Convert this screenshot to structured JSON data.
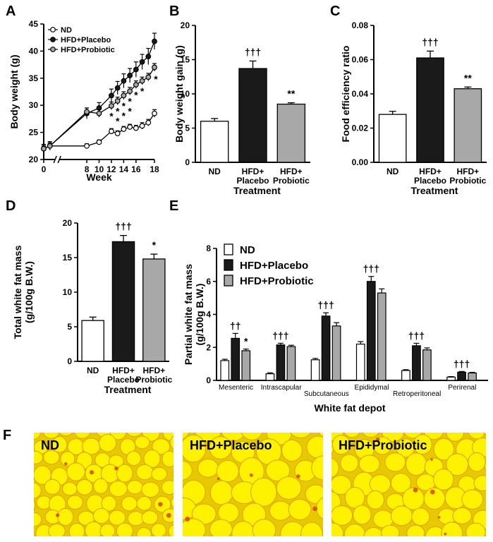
{
  "panel_letters": [
    "A",
    "B",
    "C",
    "D",
    "E",
    "F"
  ],
  "colors": {
    "ND": "#ffffff",
    "HFD+Placebo": "#1a1a1a",
    "HFD+Probiotic": "#a8a8a8",
    "histology_bg": "#f2e200",
    "histology_stroke": "#d23a1a"
  },
  "chart_data": [
    {
      "id": "A",
      "type": "line",
      "xlabel": "Week",
      "ylabel": "Body weight (g)",
      "xlim": [
        0,
        18
      ],
      "ylim": [
        20,
        45
      ],
      "xticks": [
        0,
        8,
        10,
        12,
        14,
        16,
        18
      ],
      "yticks": [
        20,
        25,
        30,
        35,
        40,
        45
      ],
      "x": [
        0,
        1,
        7,
        9,
        11,
        12,
        13,
        14,
        15,
        16,
        17,
        18
      ],
      "legend": "top-left",
      "series": [
        {
          "name": "ND",
          "marker": "open-circle",
          "values": [
            22,
            22.5,
            22.5,
            23.2,
            25.2,
            24.8,
            25.6,
            26,
            25.8,
            26.2,
            26.8,
            28.5
          ],
          "errors": [
            0.4,
            0.4,
            0.4,
            0.4,
            0.5,
            0.5,
            0.5,
            0.5,
            0.5,
            0.6,
            0.6,
            0.7
          ]
        },
        {
          "name": "HFD+Placebo",
          "marker": "filled-circle",
          "values": [
            22,
            22.5,
            28.5,
            29.5,
            31.8,
            33.2,
            34.5,
            35.5,
            36.6,
            38,
            39,
            41.8
          ],
          "errors": [
            0.8,
            0.8,
            1,
            1,
            1.2,
            1.2,
            1.3,
            1.3,
            1.4,
            1.4,
            1.5,
            1.5
          ]
        },
        {
          "name": "HFD+Probiotic",
          "marker": "gray-circle",
          "values": [
            22,
            22.5,
            28.8,
            28.5,
            29.9,
            30.8,
            31.8,
            32.6,
            33.8,
            34.5,
            35.2,
            37
          ],
          "errors": [
            0.6,
            0.6,
            0.7,
            0.7,
            0.7,
            0.7,
            0.7,
            0.7,
            0.7,
            0.7,
            0.7,
            0.7
          ]
        }
      ],
      "annotations": [
        "*",
        "*",
        "*",
        "*",
        "*",
        "*",
        "*"
      ]
    },
    {
      "id": "B",
      "type": "bar",
      "ylabel": "Body weight gain (g)",
      "xlabel": "Treatment",
      "ylim": [
        0,
        20
      ],
      "yticks": [
        0,
        5,
        10,
        15,
        20
      ],
      "categories": [
        "ND",
        "HFD+",
        "HFD+"
      ],
      "categories_line2": [
        "",
        "Placebo",
        "Probiotic"
      ],
      "values": [
        6,
        13.7,
        8.5
      ],
      "errors": [
        0.4,
        1.1,
        0.2
      ],
      "annotations": [
        "",
        "†††",
        "**"
      ]
    },
    {
      "id": "C",
      "type": "bar",
      "ylabel": "Food efficiency ratio",
      "xlabel": "Treatment",
      "ylim": [
        0,
        0.08
      ],
      "yticks": [
        "0.00",
        "0.02",
        "0.04",
        "0.06",
        "0.08"
      ],
      "categories": [
        "ND",
        "HFD+",
        "HFD+"
      ],
      "categories_line2": [
        "",
        "Placebo",
        "Probiotic"
      ],
      "values": [
        0.028,
        0.061,
        0.043
      ],
      "errors": [
        0.0018,
        0.004,
        0.001
      ],
      "annotations": [
        "",
        "†††",
        "**"
      ]
    },
    {
      "id": "D",
      "type": "bar",
      "ylabel": "Total white fat mass",
      "ylabel2": "(g/100g B.W.)",
      "xlabel": "Treatment",
      "ylim": [
        0,
        20
      ],
      "yticks": [
        0,
        5,
        10,
        15,
        20
      ],
      "categories": [
        "ND",
        "HFD+",
        "HFD+"
      ],
      "categories_line2": [
        "",
        "Placebo",
        "Probiotic"
      ],
      "values": [
        5.9,
        17.3,
        14.8
      ],
      "errors": [
        0.5,
        0.9,
        0.7
      ],
      "annotations": [
        "",
        "†††",
        "*"
      ]
    },
    {
      "id": "E",
      "type": "bar",
      "ylabel": "Partial white fat mass",
      "ylabel2": "(g/100g B.W.)",
      "xlabel": "White fat depot",
      "ylim": [
        0,
        8
      ],
      "yticks": [
        0,
        2,
        4,
        6,
        8
      ],
      "categories": [
        "Mesenteric",
        "Intrascapular",
        "Subcutaneous",
        "Epididymal",
        "Retroperitoneal",
        "Perirenal"
      ],
      "legend": "top-left",
      "series": [
        {
          "name": "ND",
          "values": [
            1.2,
            0.4,
            1.25,
            2.2,
            0.6,
            0.2
          ],
          "errors": [
            0.08,
            0.06,
            0.08,
            0.15,
            0.05,
            0.03
          ]
        },
        {
          "name": "HFD+Placebo",
          "values": [
            2.55,
            2.15,
            3.9,
            6.0,
            2.1,
            0.5
          ],
          "errors": [
            0.3,
            0.1,
            0.2,
            0.3,
            0.15,
            0.04
          ]
        },
        {
          "name": "HFD+Probiotic",
          "values": [
            1.8,
            2.05,
            3.3,
            5.3,
            1.85,
            0.45
          ],
          "errors": [
            0.1,
            0.08,
            0.2,
            0.25,
            0.12,
            0.04
          ]
        }
      ],
      "annotations": [
        {
          "series": 1,
          "text": "††"
        },
        {
          "series": 2,
          "text": "*"
        },
        {
          "series": 1,
          "text": "†††"
        },
        {
          "series": 1,
          "text": "†††"
        },
        {
          "series": 1,
          "text": "†††"
        },
        {
          "series": 1,
          "text": "†††"
        },
        {
          "series": 1,
          "text": "†††"
        }
      ]
    }
  ],
  "histology": [
    {
      "label": "ND"
    },
    {
      "label": "HFD+Placebo"
    },
    {
      "label": "HFD+Probiotic"
    }
  ]
}
